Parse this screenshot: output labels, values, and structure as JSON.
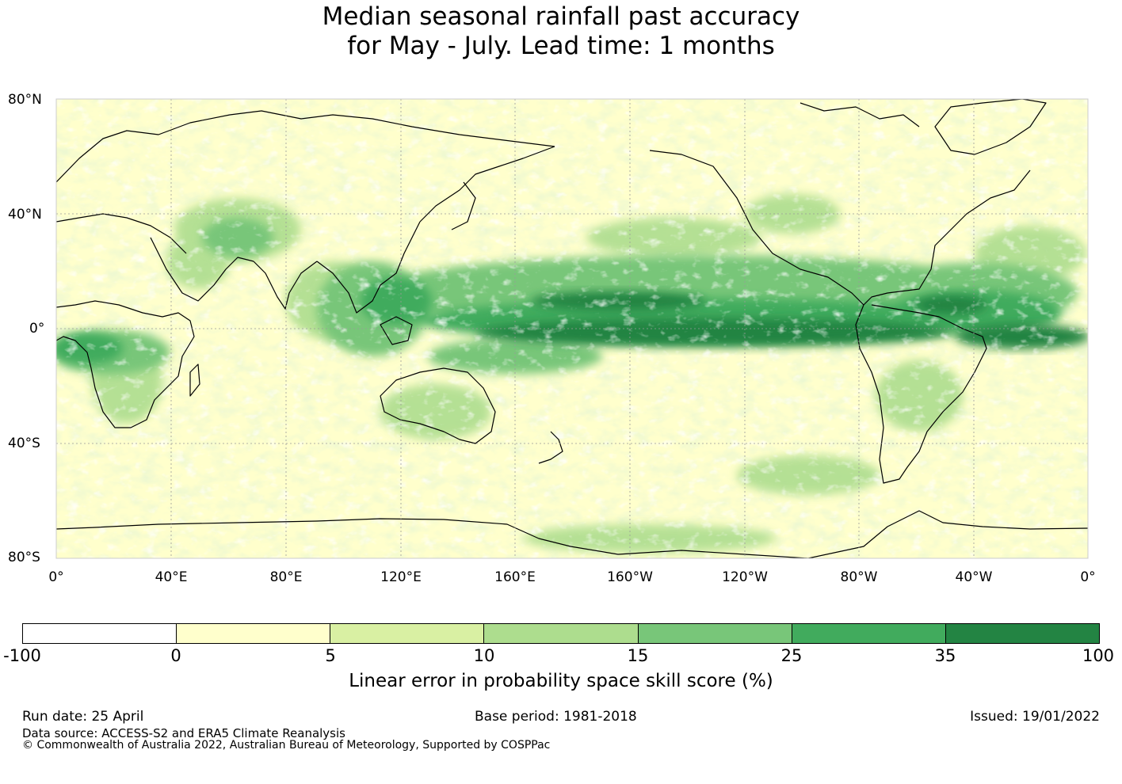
{
  "title": {
    "line1": "Median seasonal rainfall past accuracy",
    "line2": "for May - July. Lead time: 1 months"
  },
  "map": {
    "projection": "equirectangular",
    "lon_range": [
      0,
      360
    ],
    "lat_range": [
      -80,
      80
    ],
    "lat_labels": [
      "80°N",
      "40°N",
      "0°",
      "40°S",
      "80°S"
    ],
    "lon_labels": [
      "0°",
      "40°E",
      "80°E",
      "120°E",
      "160°E",
      "160°W",
      "120°W",
      "80°W",
      "40°W",
      "0°"
    ],
    "grid": true
  },
  "colorbar": {
    "colors": [
      "#ffffff",
      "#ffffcc",
      "#d9f0a3",
      "#addd8e",
      "#78c679",
      "#41ab5d",
      "#238443"
    ],
    "ticks": [
      "-100",
      "0",
      "5",
      "10",
      "15",
      "25",
      "35",
      "100"
    ],
    "label": "Linear error in probability space skill score (%)"
  },
  "footer": {
    "run_date": "Run date: 25 April",
    "base_period": "Base period: 1981-2018",
    "issued": "Issued: 19/01/2022",
    "data_source": "Data source: ACCESS-S2 and ERA5 Climate Reanalysis",
    "copyright": "© Commonwealth of Australia 2022, Australian Bureau of Meteorology, Supported by COSPPac"
  }
}
